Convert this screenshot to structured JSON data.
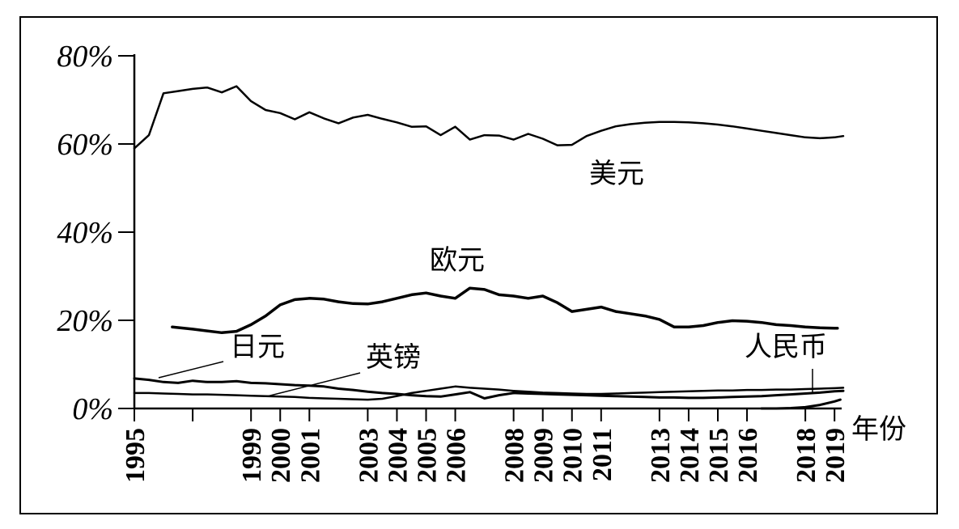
{
  "chart_data": {
    "type": "line",
    "title": "",
    "xlabel": "年份",
    "ylabel": "",
    "xlim": [
      1995,
      2019.3
    ],
    "ylim": [
      0,
      80
    ],
    "y_ticks": [
      "0%",
      "20%",
      "40%",
      "60%",
      "80%"
    ],
    "y_tick_values": [
      0,
      20,
      40,
      60,
      80
    ],
    "x_tick_labels": [
      "1995",
      "1999",
      "2000",
      "2001",
      "2003",
      "2004",
      "2005",
      "2006",
      "2008",
      "2009",
      "2010",
      "2011",
      "2013",
      "2014",
      "2015",
      "2016",
      "2018",
      "2019"
    ],
    "x_tick_values": [
      1995,
      1999,
      2000,
      2001,
      2003,
      2004,
      2005,
      2006,
      2008,
      2009,
      2010,
      2011,
      2013,
      2014,
      2015,
      2016,
      2018,
      2019
    ],
    "grid": false,
    "series": [
      {
        "name": "美元",
        "x": [
          1995,
          1995.5,
          1996,
          1996.5,
          1997,
          1997.5,
          1998,
          1998.5,
          1999,
          1999.5,
          2000,
          2000.5,
          2001,
          2001.5,
          2002,
          2002.5,
          2003,
          2003.5,
          2004,
          2004.5,
          2005,
          2005.5,
          2006,
          2006.5,
          2007,
          2007.5,
          2008,
          2008.5,
          2009,
          2009.5,
          2010,
          2010.5,
          2011,
          2011.5,
          2012,
          2012.5,
          2013,
          2013.5,
          2014,
          2014.5,
          2015,
          2015.5,
          2016,
          2016.5,
          2017,
          2017.5,
          2018,
          2018.5,
          2019,
          2019.3
        ],
        "values": [
          59,
          62,
          71.5,
          72,
          72.5,
          72.8,
          71.7,
          73.1,
          69.7,
          67.7,
          67.0,
          65.6,
          67.2,
          65.8,
          64.7,
          66.0,
          66.6,
          65.7,
          64.9,
          63.9,
          64.0,
          62.0,
          63.9,
          61.0,
          62.0,
          61.9,
          61.0,
          62.3,
          61.2,
          59.7,
          59.8,
          61.8,
          63.0,
          64.0,
          64.5,
          64.8,
          65.0,
          65.0,
          64.9,
          64.7,
          64.4,
          64.0,
          63.5,
          63.0,
          62.5,
          62.0,
          61.5,
          61.3,
          61.5,
          61.8
        ]
      },
      {
        "name": "欧元",
        "x": [
          1996.3,
          1997,
          1998,
          1998.5,
          1999,
          1999.5,
          2000,
          2000.5,
          2001,
          2001.5,
          2002,
          2002.5,
          2003,
          2003.5,
          2004,
          2004.5,
          2005,
          2005.5,
          2006,
          2006.5,
          2007,
          2007.5,
          2008,
          2008.5,
          2009,
          2009.5,
          2010,
          2010.5,
          2011,
          2011.5,
          2012,
          2012.5,
          2013,
          2013.5,
          2014,
          2014.5,
          2015,
          2015.5,
          2016,
          2016.5,
          2017,
          2017.5,
          2018,
          2018.5,
          2019,
          2019.1
        ],
        "values": [
          18.5,
          18.0,
          17.2,
          17.5,
          19.0,
          21.0,
          23.5,
          24.7,
          25.0,
          24.8,
          24.2,
          23.8,
          23.7,
          24.2,
          25.0,
          25.8,
          26.2,
          25.5,
          25.0,
          27.3,
          27.0,
          25.8,
          25.5,
          25.0,
          25.5,
          24.0,
          22.0,
          22.5,
          23.0,
          22.0,
          21.5,
          21.0,
          20.2,
          18.5,
          18.5,
          18.8,
          19.5,
          19.9,
          19.8,
          19.5,
          19.0,
          18.8,
          18.5,
          18.3,
          18.2,
          18.2
        ]
      },
      {
        "name": "日元",
        "x": [
          1995,
          1995.5,
          1996,
          1996.5,
          1997,
          1997.5,
          1998,
          1998.5,
          1999,
          1999.5,
          2000,
          2000.5,
          2001,
          2001.5,
          2002,
          2002.5,
          2003,
          2003.5,
          2004,
          2004.5,
          2005,
          2005.5,
          2006,
          2006.5,
          2007,
          2007.5,
          2008,
          2008.5,
          2009,
          2009.5,
          2010,
          2010.5,
          2011,
          2011.5,
          2012,
          2012.5,
          2013,
          2013.5,
          2014,
          2014.5,
          2015,
          2015.5,
          2016,
          2016.5,
          2017,
          2017.5,
          2018,
          2018.5,
          2019,
          2019.3
        ],
        "values": [
          6.8,
          6.5,
          6.0,
          5.8,
          6.3,
          6.0,
          6.0,
          6.2,
          5.8,
          5.7,
          5.5,
          5.3,
          5.2,
          5.0,
          4.5,
          4.2,
          3.8,
          3.5,
          3.3,
          3.0,
          2.8,
          2.7,
          3.2,
          3.7,
          2.3,
          3.0,
          3.5,
          3.4,
          3.3,
          3.2,
          3.1,
          3.0,
          2.9,
          2.8,
          2.7,
          2.6,
          2.5,
          2.5,
          2.4,
          2.4,
          2.5,
          2.6,
          2.7,
          2.8,
          3.0,
          3.2,
          3.4,
          3.6,
          3.9,
          4.0
        ]
      },
      {
        "name": "英镑",
        "x": [
          1995,
          1995.5,
          1996,
          1996.5,
          1997,
          1997.5,
          1998,
          1998.5,
          1999,
          1999.5,
          2000,
          2000.5,
          2001,
          2001.5,
          2002,
          2002.5,
          2003,
          2003.5,
          2004,
          2004.5,
          2005,
          2005.5,
          2006,
          2006.5,
          2007,
          2007.5,
          2008,
          2008.5,
          2009,
          2009.5,
          2010,
          2010.5,
          2011,
          2011.5,
          2012,
          2012.5,
          2013,
          2013.5,
          2014,
          2014.5,
          2015,
          2015.5,
          2016,
          2016.5,
          2017,
          2017.5,
          2018,
          2018.5,
          2019,
          2019.3
        ],
        "values": [
          3.5,
          3.5,
          3.4,
          3.3,
          3.2,
          3.2,
          3.1,
          3.0,
          2.9,
          2.8,
          2.7,
          2.6,
          2.4,
          2.3,
          2.2,
          2.1,
          2.0,
          2.2,
          2.8,
          3.5,
          4.0,
          4.5,
          5.0,
          4.7,
          4.5,
          4.3,
          4.0,
          3.8,
          3.6,
          3.5,
          3.4,
          3.3,
          3.3,
          3.4,
          3.5,
          3.6,
          3.7,
          3.8,
          3.9,
          4.0,
          4.1,
          4.1,
          4.2,
          4.2,
          4.3,
          4.3,
          4.4,
          4.5,
          4.6,
          4.7
        ]
      },
      {
        "name": "人民币",
        "x": [
          2016.5,
          2017,
          2017.5,
          2018,
          2018.5,
          2019,
          2019.2
        ],
        "values": [
          0.0,
          0.0,
          0.1,
          0.3,
          0.8,
          1.6,
          2.0
        ]
      }
    ],
    "series_labels": [
      "美元",
      "欧元",
      "日元",
      "英镑",
      "人民币"
    ]
  }
}
